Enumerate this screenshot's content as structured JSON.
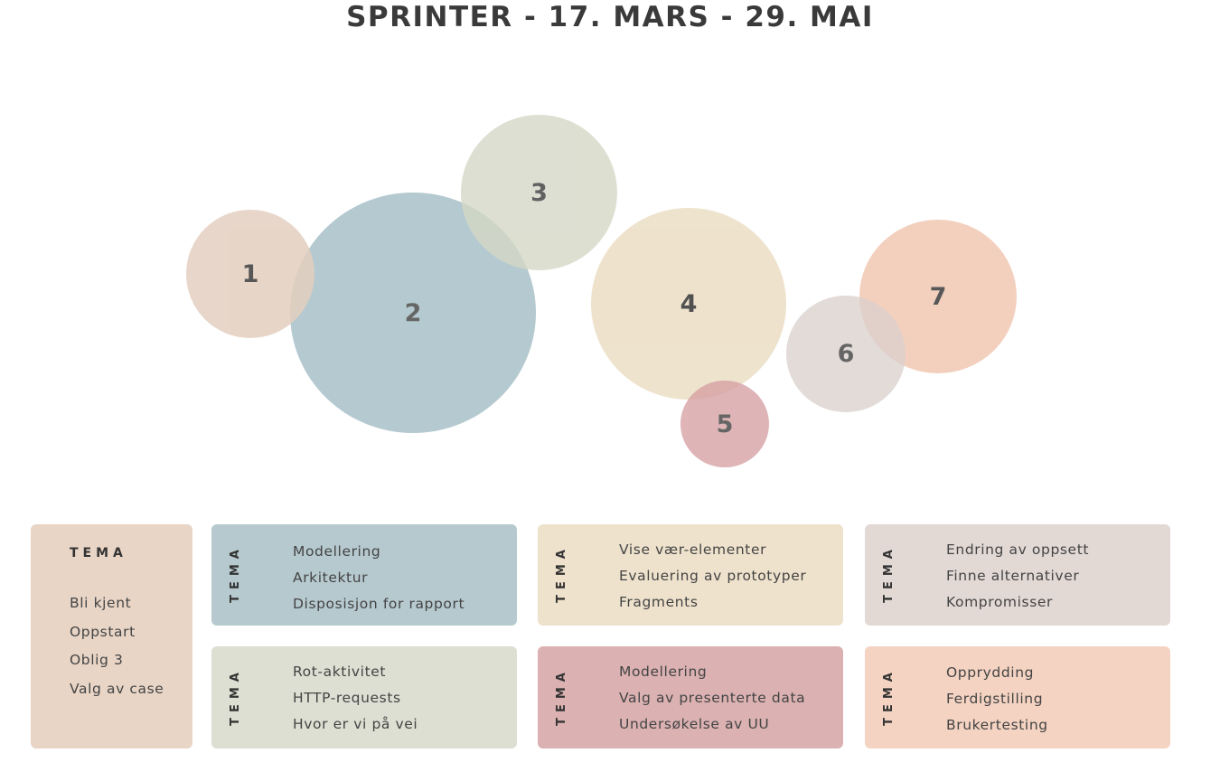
{
  "title": "SPRINTER - 17. MARS - 29. MAI",
  "bubbles": [
    {
      "label": "1",
      "color": "#e3cfbf"
    },
    {
      "label": "2",
      "color": "#9fbac3"
    },
    {
      "label": "3",
      "color": "#d4d8c6"
    },
    {
      "label": "4",
      "color": "#ecdfc6"
    },
    {
      "label": "5",
      "color": "#d6a0a3"
    },
    {
      "label": "6",
      "color": "#dbd1cd"
    },
    {
      "label": "7",
      "color": "#f1c8b3"
    }
  ],
  "cards": {
    "sprint1": {
      "tema": "TEMA",
      "color": "#e8d5c6",
      "items": [
        "Bli kjent",
        "Oppstart",
        "Oblig 3",
        "Valg av case"
      ]
    },
    "sprint2": {
      "tema": "TEMA",
      "color": "#b6c9cf",
      "items": [
        "Modellering",
        "Arkitektur",
        "Disposisjon for rapport"
      ]
    },
    "sprint3": {
      "tema": "TEMA",
      "color": "#dddfd2",
      "items": [
        "Rot-aktivitet",
        "HTTP-requests",
        "Hvor er vi på vei"
      ]
    },
    "sprint4": {
      "tema": "TEMA",
      "color": "#eee2cc",
      "items": [
        "Vise vær-elementer",
        "Evaluering av prototyper",
        "Fragments"
      ]
    },
    "sprint5": {
      "tema": "TEMA",
      "color": "#dbb1b2",
      "items": [
        "Modellering",
        "Valg av presenterte data",
        "Undersøkelse av UU"
      ]
    },
    "sprint6": {
      "tema": "TEMA",
      "color": "#e2d8d4",
      "items": [
        "Endring av oppsett",
        "Finne alternativer",
        "Kompromisser"
      ]
    },
    "sprint7": {
      "tema": "TEMA",
      "color": "#f4d3c2",
      "items": [
        "Opprydding",
        "Ferdigstilling",
        "Brukertesting"
      ]
    }
  }
}
